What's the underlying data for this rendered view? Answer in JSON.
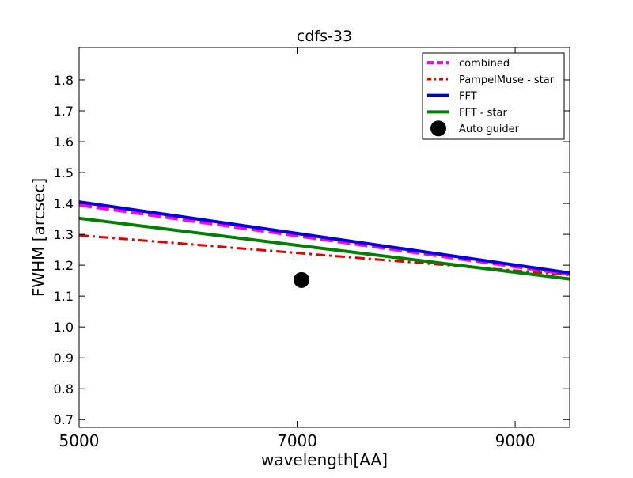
{
  "chart_data": {
    "type": "line",
    "title": "cdfs-33",
    "xlabel": "wavelength[AA]",
    "ylabel": "FWHM [arcsec]",
    "xlim": [
      5000,
      9500
    ],
    "ylim": [
      0.675,
      1.905
    ],
    "xticks": [
      5000,
      7000,
      9000
    ],
    "yticks": [
      0.7,
      0.8,
      0.9,
      1.0,
      1.1,
      1.2,
      1.3,
      1.4,
      1.5,
      1.6,
      1.7,
      1.8
    ],
    "ytick_labels": [
      "0.7",
      "0.8",
      "0.9",
      "1.0",
      "1.1",
      "1.2",
      "1.3",
      "1.4",
      "1.5",
      "1.6",
      "1.7",
      "1.8"
    ],
    "xtick_labels": [
      "5000",
      "7000",
      "9000"
    ],
    "grid": false,
    "legend_position": "top-right",
    "series": [
      {
        "name": "combined",
        "x": [
          5000,
          9500
        ],
        "y": [
          1.395,
          1.17
        ],
        "color": "#ff00ff",
        "style": "dashed"
      },
      {
        "name": "PampelMuse - star",
        "x": [
          5000,
          9500
        ],
        "y": [
          1.297,
          1.168
        ],
        "color": "#e00000",
        "style": "dashdot"
      },
      {
        "name": "FFT",
        "x": [
          5000,
          9500
        ],
        "y": [
          1.405,
          1.175
        ],
        "color": "#0000dd",
        "style": "solid"
      },
      {
        "name": "FFT - star",
        "x": [
          5000,
          9500
        ],
        "y": [
          1.352,
          1.155
        ],
        "color": "#008000",
        "style": "solid"
      },
      {
        "name": "Auto guider",
        "x": [
          7040
        ],
        "y": [
          1.152
        ],
        "color": "#000000",
        "style": "marker"
      }
    ]
  }
}
